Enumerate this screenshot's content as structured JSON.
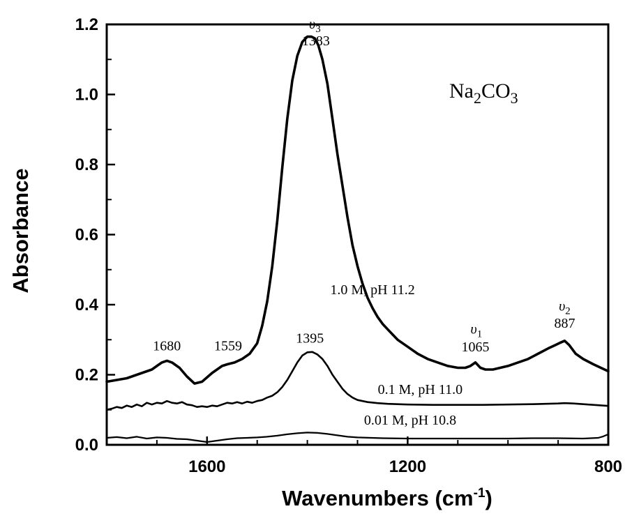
{
  "chart_data": {
    "type": "line",
    "title": "",
    "xlabel": "Wavenumbers (cm",
    "xlabel_sup": "-1",
    "xlabel_close": ")",
    "ylabel": "Absorbance",
    "xlim": [
      1800,
      800
    ],
    "ylim": [
      0.0,
      1.2
    ],
    "x_reversed": true,
    "grid": false,
    "x_ticks": [
      {
        "value": 1600,
        "label": "1600"
      },
      {
        "value": 1200,
        "label": "1200"
      },
      {
        "value": 800,
        "label": "800"
      }
    ],
    "y_ticks": [
      {
        "value": 0.0,
        "label": "0.0"
      },
      {
        "value": 0.2,
        "label": "0.2"
      },
      {
        "value": 0.4,
        "label": "0.4"
      },
      {
        "value": 0.6,
        "label": "0.6"
      },
      {
        "value": 0.8,
        "label": "0.8"
      },
      {
        "value": 1.0,
        "label": "1.0"
      },
      {
        "value": 1.2,
        "label": "1.2"
      }
    ],
    "compound_label": {
      "main": "Na",
      "sub1": "2",
      "mid": "CO",
      "sub2": "3"
    },
    "series": [
      {
        "name": "1.0 M, pH 11.2",
        "x": [
          1800,
          1760,
          1730,
          1710,
          1700,
          1690,
          1680,
          1670,
          1655,
          1640,
          1625,
          1610,
          1590,
          1570,
          1559,
          1545,
          1530,
          1515,
          1500,
          1490,
          1480,
          1470,
          1460,
          1450,
          1440,
          1430,
          1420,
          1410,
          1400,
          1392,
          1385,
          1378,
          1370,
          1360,
          1350,
          1340,
          1330,
          1320,
          1310,
          1300,
          1290,
          1280,
          1270,
          1260,
          1250,
          1240,
          1230,
          1220,
          1200,
          1180,
          1160,
          1140,
          1120,
          1100,
          1085,
          1075,
          1065,
          1055,
          1045,
          1030,
          1000,
          980,
          960,
          940,
          920,
          905,
          895,
          887,
          878,
          865,
          850,
          830,
          800
        ],
        "y": [
          0.18,
          0.19,
          0.205,
          0.215,
          0.225,
          0.235,
          0.24,
          0.235,
          0.22,
          0.195,
          0.175,
          0.18,
          0.205,
          0.225,
          0.23,
          0.235,
          0.245,
          0.26,
          0.29,
          0.34,
          0.41,
          0.51,
          0.64,
          0.79,
          0.93,
          1.04,
          1.11,
          1.15,
          1.165,
          1.165,
          1.16,
          1.14,
          1.1,
          1.03,
          0.93,
          0.83,
          0.74,
          0.65,
          0.57,
          0.51,
          0.46,
          0.42,
          0.39,
          0.365,
          0.345,
          0.33,
          0.315,
          0.3,
          0.28,
          0.26,
          0.245,
          0.235,
          0.225,
          0.22,
          0.22,
          0.225,
          0.235,
          0.22,
          0.215,
          0.215,
          0.225,
          0.235,
          0.245,
          0.26,
          0.275,
          0.285,
          0.292,
          0.297,
          0.285,
          0.26,
          0.245,
          0.23,
          0.21
        ],
        "stroke_width": 3.6
      },
      {
        "name": "0.1 M, pH 11.0",
        "x": [
          1800,
          1790,
          1780,
          1770,
          1760,
          1750,
          1740,
          1730,
          1720,
          1710,
          1700,
          1690,
          1680,
          1670,
          1660,
          1650,
          1640,
          1630,
          1620,
          1610,
          1600,
          1590,
          1580,
          1570,
          1560,
          1550,
          1540,
          1530,
          1520,
          1510,
          1500,
          1490,
          1480,
          1470,
          1460,
          1450,
          1440,
          1430,
          1420,
          1410,
          1400,
          1390,
          1380,
          1370,
          1360,
          1350,
          1340,
          1330,
          1320,
          1310,
          1300,
          1280,
          1260,
          1240,
          1220,
          1200,
          1150,
          1100,
          1050,
          1000,
          950,
          900,
          887,
          870,
          850,
          820,
          800
        ],
        "y": [
          0.1,
          0.103,
          0.108,
          0.105,
          0.112,
          0.108,
          0.115,
          0.11,
          0.12,
          0.115,
          0.12,
          0.118,
          0.125,
          0.12,
          0.118,
          0.122,
          0.115,
          0.113,
          0.108,
          0.11,
          0.108,
          0.112,
          0.11,
          0.115,
          0.12,
          0.118,
          0.122,
          0.118,
          0.123,
          0.12,
          0.125,
          0.128,
          0.135,
          0.14,
          0.15,
          0.165,
          0.185,
          0.21,
          0.235,
          0.255,
          0.264,
          0.265,
          0.258,
          0.245,
          0.225,
          0.2,
          0.18,
          0.16,
          0.145,
          0.135,
          0.128,
          0.122,
          0.119,
          0.117,
          0.116,
          0.115,
          0.114,
          0.114,
          0.114,
          0.115,
          0.116,
          0.118,
          0.119,
          0.118,
          0.116,
          0.113,
          0.111
        ],
        "stroke_width": 2.6
      },
      {
        "name": "0.01 M, pH 10.8",
        "x": [
          1800,
          1780,
          1760,
          1740,
          1720,
          1700,
          1680,
          1660,
          1640,
          1620,
          1600,
          1580,
          1560,
          1540,
          1520,
          1500,
          1480,
          1460,
          1440,
          1420,
          1400,
          1380,
          1360,
          1340,
          1320,
          1300,
          1250,
          1200,
          1150,
          1100,
          1050,
          1000,
          950,
          900,
          850,
          820,
          810,
          800
        ],
        "y": [
          0.02,
          0.022,
          0.019,
          0.023,
          0.018,
          0.021,
          0.02,
          0.017,
          0.016,
          0.012,
          0.008,
          0.012,
          0.016,
          0.019,
          0.02,
          0.021,
          0.023,
          0.026,
          0.03,
          0.033,
          0.035,
          0.034,
          0.031,
          0.027,
          0.023,
          0.021,
          0.019,
          0.018,
          0.018,
          0.018,
          0.018,
          0.018,
          0.019,
          0.019,
          0.018,
          0.02,
          0.024,
          0.03
        ],
        "stroke_width": 2.2
      }
    ],
    "series_labels": [
      {
        "text": "1.0 M, pH 11.2",
        "x": 1270,
        "y": 0.43
      },
      {
        "text": "0.1 M, pH 11.0",
        "x": 1175,
        "y": 0.145
      },
      {
        "text": "0.01 M, pH 10.8",
        "x": 1195,
        "y": 0.058
      }
    ],
    "annotations": [
      {
        "text": "1680",
        "x": 1680,
        "y": 0.27
      },
      {
        "text": "1559",
        "x": 1558,
        "y": 0.27
      },
      {
        "text": "1395",
        "x": 1395,
        "y": 0.292
      },
      {
        "text": "1065",
        "x": 1065,
        "y": 0.267
      },
      {
        "text": "887",
        "x": 887,
        "y": 0.334
      },
      {
        "text": "1383",
        "x": 1383,
        "y": 1.14
      }
    ],
    "mode_labels": [
      {
        "greek": "υ",
        "sub": "3",
        "x": 1385,
        "y": 1.188
      },
      {
        "greek": "υ",
        "sub": "1",
        "x": 1063,
        "y": 0.317
      },
      {
        "greek": "υ",
        "sub": "2",
        "x": 887,
        "y": 0.383
      }
    ]
  }
}
